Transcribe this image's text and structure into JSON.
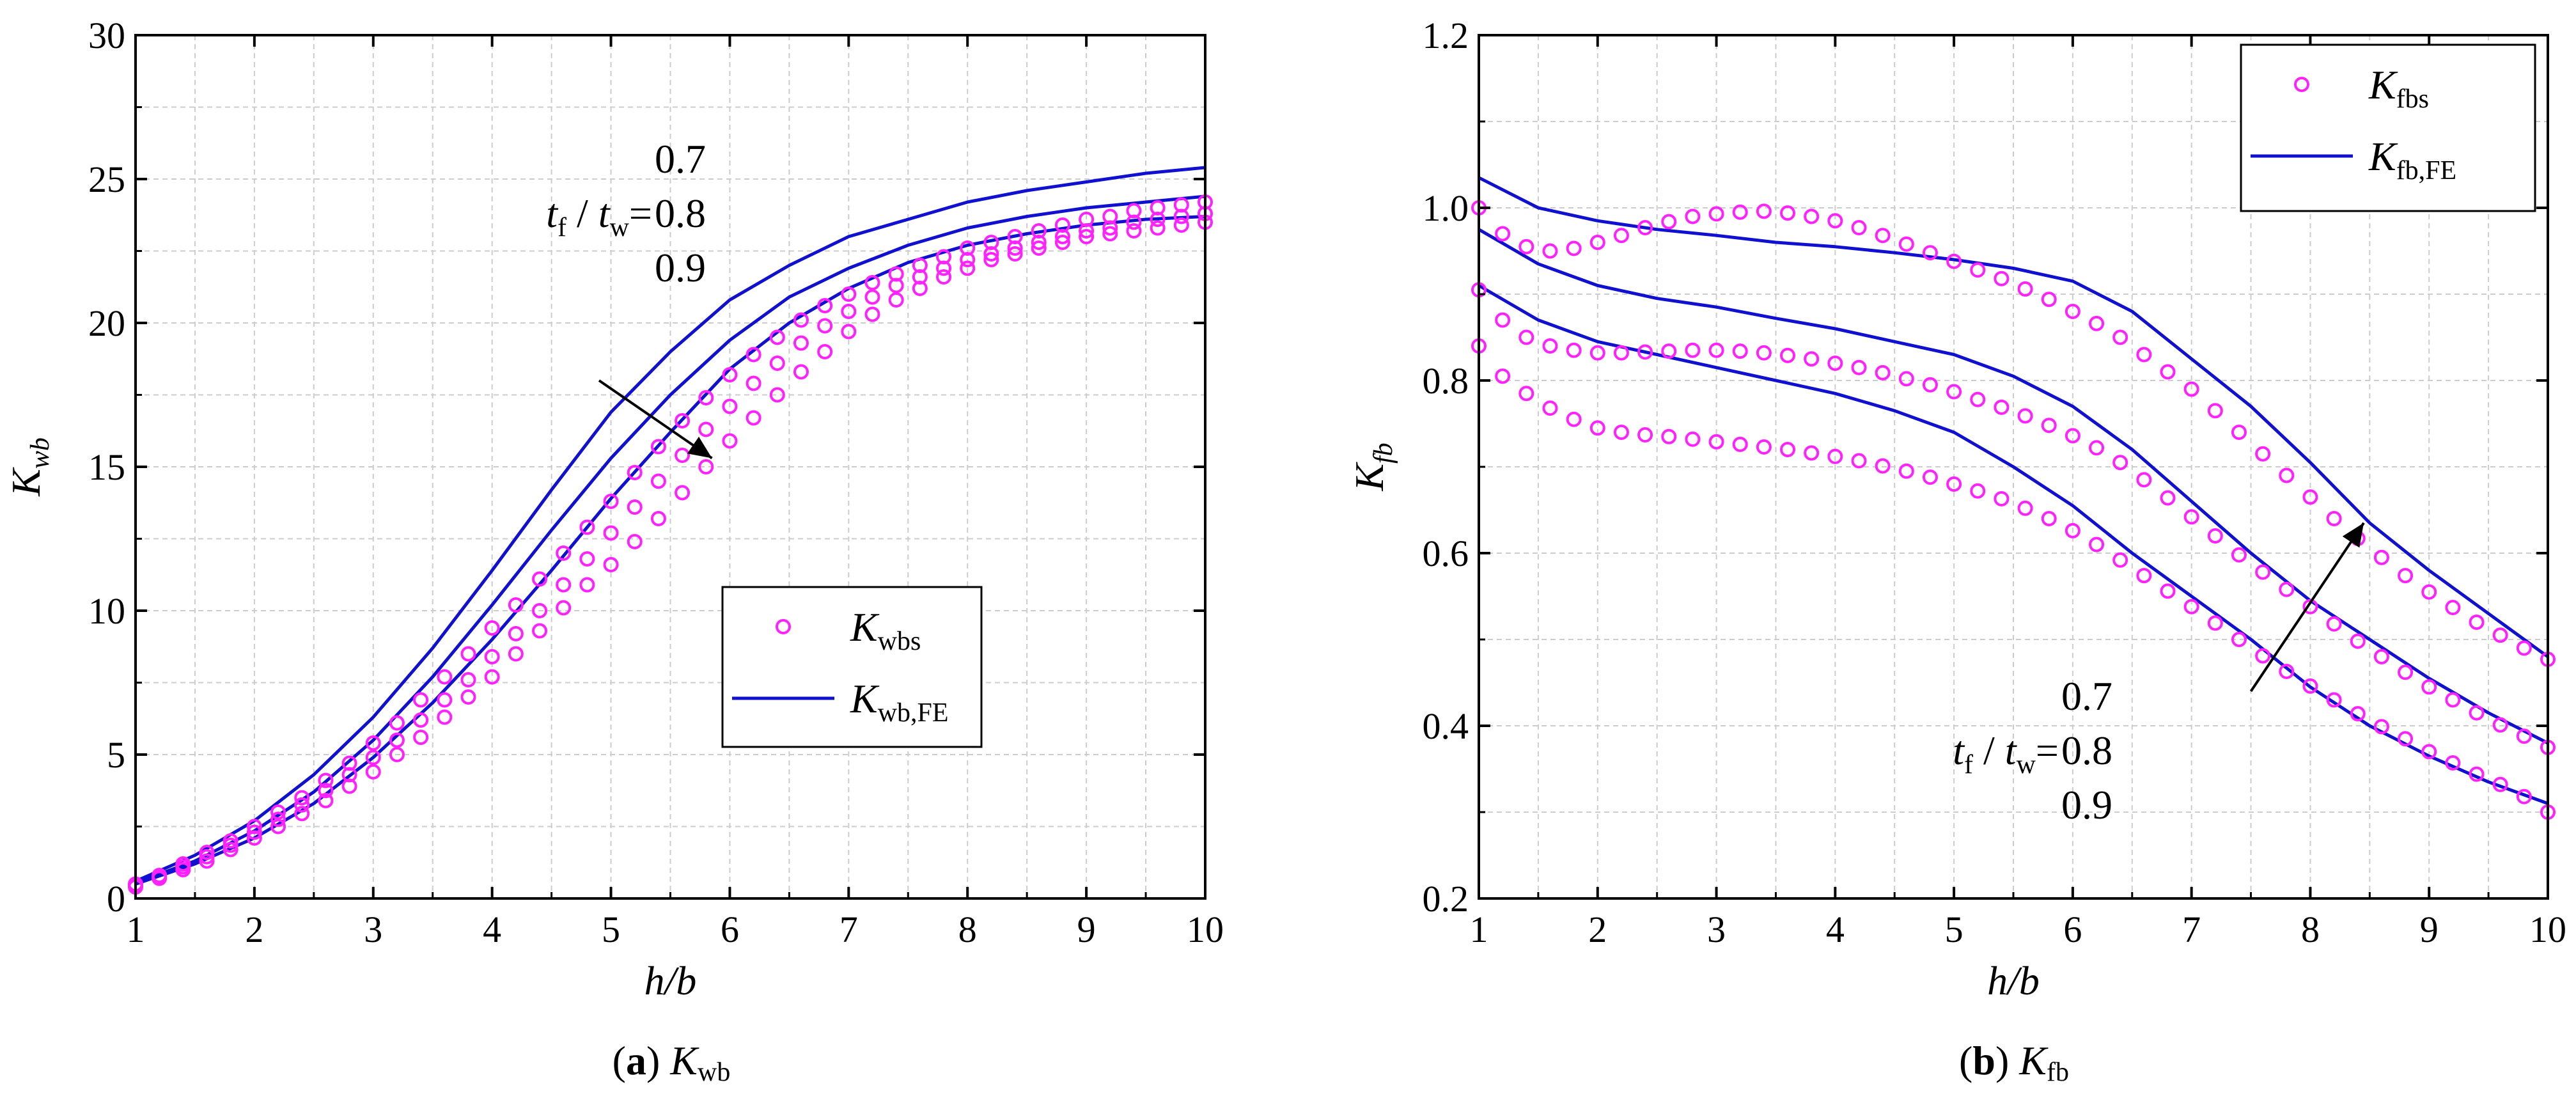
{
  "colors": {
    "fe_line": "#1010d0",
    "marker": "#ff22ff",
    "grid": "#cccccc",
    "axis": "#000000"
  },
  "chart_data": [
    {
      "id": "a",
      "type": "line",
      "title": "",
      "caption": {
        "letter": "a",
        "symbol": "K",
        "subscript": "wb"
      },
      "xlabel": "h/b",
      "ylabel": {
        "symbol": "K",
        "subscript": "wb"
      },
      "xlim": [
        1,
        10
      ],
      "ylim": [
        0,
        30
      ],
      "xticks": [
        1,
        2,
        3,
        4,
        5,
        6,
        7,
        8,
        9,
        10
      ],
      "yticks": [
        0,
        5,
        10,
        15,
        20,
        25,
        30
      ],
      "legend": {
        "position": "center-right",
        "entries": [
          {
            "kind": "marker",
            "symbol": "K",
            "subscript": "wbs"
          },
          {
            "kind": "line",
            "symbol": "K",
            "subscript": "wb,FE"
          }
        ]
      },
      "annotation": {
        "label_symbol": "t",
        "label_sub1": "f",
        "label_sep": " / ",
        "label_sub2": "w",
        "label_eq": "=",
        "values": [
          "0.7",
          "0.8",
          "0.9"
        ],
        "arrow_from": [
          4.9,
          18.0
        ],
        "arrow_to": [
          5.85,
          15.3
        ]
      },
      "series": [
        {
          "name": "Kwb,FE tf/tw=0.7",
          "kind": "line",
          "x": [
            1,
            1.5,
            2,
            2.5,
            3,
            3.5,
            4,
            4.5,
            5,
            5.5,
            6,
            6.5,
            7,
            7.5,
            8,
            8.5,
            9,
            9.5,
            10
          ],
          "y": [
            0.6,
            1.5,
            2.7,
            4.3,
            6.3,
            8.7,
            11.4,
            14.2,
            16.9,
            19.0,
            20.8,
            22.0,
            23.0,
            23.6,
            24.2,
            24.6,
            24.9,
            25.2,
            25.4
          ]
        },
        {
          "name": "Kwb,FE tf/tw=0.8",
          "kind": "line",
          "x": [
            1,
            1.5,
            2,
            2.5,
            3,
            3.5,
            4,
            4.5,
            5,
            5.5,
            6,
            6.5,
            7,
            7.5,
            8,
            8.5,
            9,
            9.5,
            10
          ],
          "y": [
            0.55,
            1.3,
            2.35,
            3.7,
            5.5,
            7.7,
            10.2,
            12.8,
            15.3,
            17.5,
            19.4,
            20.9,
            21.9,
            22.7,
            23.3,
            23.7,
            24.0,
            24.2,
            24.4
          ]
        },
        {
          "name": "Kwb,FE tf/tw=0.9",
          "kind": "line",
          "x": [
            1,
            1.5,
            2,
            2.5,
            3,
            3.5,
            4,
            4.5,
            5,
            5.5,
            6,
            6.5,
            7,
            7.5,
            8,
            8.5,
            9,
            9.5,
            10
          ],
          "y": [
            0.5,
            1.2,
            2.1,
            3.3,
            4.9,
            6.8,
            9.0,
            11.4,
            13.9,
            16.2,
            18.4,
            20.0,
            21.2,
            22.1,
            22.7,
            23.1,
            23.4,
            23.6,
            23.7
          ]
        },
        {
          "name": "Kwbs tf/tw=0.7",
          "kind": "marker",
          "x": [
            1.0,
            1.2,
            1.4,
            1.6,
            1.8,
            2.0,
            2.2,
            2.4,
            2.6,
            2.8,
            3.0,
            3.2,
            3.4,
            3.6,
            3.8,
            4.0,
            4.2,
            4.4,
            4.6,
            4.8,
            5.0,
            5.2,
            5.4,
            5.6,
            5.8,
            6.0,
            6.2,
            6.4,
            6.6,
            6.8,
            7.0,
            7.2,
            7.4,
            7.6,
            7.8,
            8.0,
            8.2,
            8.4,
            8.6,
            8.8,
            9.0,
            9.2,
            9.4,
            9.6,
            9.8,
            10.0
          ],
          "y": [
            0.5,
            0.8,
            1.2,
            1.6,
            2.0,
            2.5,
            3.0,
            3.5,
            4.1,
            4.7,
            5.4,
            6.1,
            6.9,
            7.7,
            8.5,
            9.4,
            10.2,
            11.1,
            12.0,
            12.9,
            13.8,
            14.8,
            15.7,
            16.6,
            17.4,
            18.2,
            18.9,
            19.5,
            20.1,
            20.6,
            21.0,
            21.4,
            21.7,
            22.0,
            22.3,
            22.6,
            22.8,
            23.0,
            23.2,
            23.4,
            23.6,
            23.7,
            23.9,
            24.0,
            24.1,
            24.2
          ]
        },
        {
          "name": "Kwbs tf/tw=0.8",
          "kind": "marker",
          "x": [
            1.0,
            1.2,
            1.4,
            1.6,
            1.8,
            2.0,
            2.2,
            2.4,
            2.6,
            2.8,
            3.0,
            3.2,
            3.4,
            3.6,
            3.8,
            4.0,
            4.2,
            4.4,
            4.6,
            4.8,
            5.0,
            5.2,
            5.4,
            5.6,
            5.8,
            6.0,
            6.2,
            6.4,
            6.6,
            6.8,
            7.0,
            7.2,
            7.4,
            7.6,
            7.8,
            8.0,
            8.2,
            8.4,
            8.6,
            8.8,
            9.0,
            9.2,
            9.4,
            9.6,
            9.8,
            10.0
          ],
          "y": [
            0.45,
            0.75,
            1.1,
            1.45,
            1.85,
            2.3,
            2.75,
            3.25,
            3.75,
            4.3,
            4.9,
            5.5,
            6.2,
            6.9,
            7.6,
            8.4,
            9.2,
            10.0,
            10.9,
            11.8,
            12.7,
            13.6,
            14.5,
            15.4,
            16.3,
            17.1,
            17.9,
            18.6,
            19.3,
            19.9,
            20.4,
            20.9,
            21.3,
            21.6,
            21.9,
            22.2,
            22.4,
            22.6,
            22.8,
            23.0,
            23.2,
            23.3,
            23.5,
            23.6,
            23.7,
            23.8
          ]
        },
        {
          "name": "Kwbs tf/tw=0.9",
          "kind": "marker",
          "x": [
            1.0,
            1.2,
            1.4,
            1.6,
            1.8,
            2.0,
            2.2,
            2.4,
            2.6,
            2.8,
            3.0,
            3.2,
            3.4,
            3.6,
            3.8,
            4.0,
            4.2,
            4.4,
            4.6,
            4.8,
            5.0,
            5.2,
            5.4,
            5.6,
            5.8,
            6.0,
            6.2,
            6.4,
            6.6,
            6.8,
            7.0,
            7.2,
            7.4,
            7.6,
            7.8,
            8.0,
            8.2,
            8.4,
            8.6,
            8.8,
            9.0,
            9.2,
            9.4,
            9.6,
            9.8,
            10.0
          ],
          "y": [
            0.4,
            0.7,
            1.0,
            1.3,
            1.7,
            2.1,
            2.5,
            2.95,
            3.4,
            3.9,
            4.4,
            5.0,
            5.6,
            6.3,
            7.0,
            7.7,
            8.5,
            9.3,
            10.1,
            10.9,
            11.6,
            12.4,
            13.2,
            14.1,
            15.0,
            15.9,
            16.7,
            17.5,
            18.3,
            19.0,
            19.7,
            20.3,
            20.8,
            21.2,
            21.6,
            21.9,
            22.2,
            22.4,
            22.6,
            22.8,
            23.0,
            23.1,
            23.2,
            23.3,
            23.4,
            23.5
          ]
        }
      ]
    },
    {
      "id": "b",
      "type": "line",
      "title": "",
      "caption": {
        "letter": "b",
        "symbol": "K",
        "subscript": "fb"
      },
      "xlabel": "h/b",
      "ylabel": {
        "symbol": "K",
        "subscript": "fb"
      },
      "xlim": [
        1,
        10
      ],
      "ylim": [
        0.2,
        1.2
      ],
      "xticks": [
        1,
        2,
        3,
        4,
        5,
        6,
        7,
        8,
        9,
        10
      ],
      "yticks": [
        0.2,
        0.4,
        0.6,
        0.8,
        1.0,
        1.2
      ],
      "legend": {
        "position": "top-right",
        "entries": [
          {
            "kind": "marker",
            "symbol": "K",
            "subscript": "fbs"
          },
          {
            "kind": "line",
            "symbol": "K",
            "subscript": "fb,FE"
          }
        ]
      },
      "annotation": {
        "label_symbol": "t",
        "label_sub1": "f",
        "label_sep": " / ",
        "label_sub2": "w",
        "label_eq": "=",
        "values": [
          "0.7",
          "0.8",
          "0.9"
        ],
        "arrow_from": [
          7.5,
          0.44
        ],
        "arrow_to": [
          8.45,
          0.635
        ]
      },
      "series": [
        {
          "name": "Kfb,FE tf/tw=0.7",
          "kind": "line",
          "x": [
            1,
            1.5,
            2,
            2.5,
            3,
            3.5,
            4,
            4.5,
            5,
            5.5,
            6,
            6.5,
            7,
            7.5,
            8,
            8.5,
            9,
            9.5,
            10
          ],
          "y": [
            1.035,
            1.0,
            0.985,
            0.975,
            0.968,
            0.96,
            0.955,
            0.948,
            0.94,
            0.93,
            0.915,
            0.88,
            0.825,
            0.77,
            0.705,
            0.635,
            0.58,
            0.53,
            0.48
          ]
        },
        {
          "name": "Kfb,FE tf/tw=0.8",
          "kind": "line",
          "x": [
            1,
            1.5,
            2,
            2.5,
            3,
            3.5,
            4,
            4.5,
            5,
            5.5,
            6,
            6.5,
            7,
            7.5,
            8,
            8.5,
            9,
            9.5,
            10
          ],
          "y": [
            0.975,
            0.935,
            0.91,
            0.895,
            0.885,
            0.872,
            0.86,
            0.845,
            0.83,
            0.805,
            0.77,
            0.72,
            0.66,
            0.6,
            0.545,
            0.5,
            0.455,
            0.415,
            0.38
          ]
        },
        {
          "name": "Kfb,FE tf/tw=0.9",
          "kind": "line",
          "x": [
            1,
            1.5,
            2,
            2.5,
            3,
            3.5,
            4,
            4.5,
            5,
            5.5,
            6,
            6.5,
            7,
            7.5,
            8,
            8.5,
            9,
            9.5,
            10
          ],
          "y": [
            0.91,
            0.87,
            0.845,
            0.83,
            0.815,
            0.8,
            0.785,
            0.765,
            0.74,
            0.7,
            0.655,
            0.6,
            0.55,
            0.5,
            0.445,
            0.4,
            0.365,
            0.335,
            0.31
          ]
        },
        {
          "name": "Kfbs tf/tw=0.7",
          "kind": "marker",
          "x": [
            1.0,
            1.2,
            1.4,
            1.6,
            1.8,
            2.0,
            2.2,
            2.4,
            2.6,
            2.8,
            3.0,
            3.2,
            3.4,
            3.6,
            3.8,
            4.0,
            4.2,
            4.4,
            4.6,
            4.8,
            5.0,
            5.2,
            5.4,
            5.6,
            5.8,
            6.0,
            6.2,
            6.4,
            6.6,
            6.8,
            7.0,
            7.2,
            7.4,
            7.6,
            7.8,
            8.0,
            8.2,
            8.4,
            8.6,
            8.8,
            9.0,
            9.2,
            9.4,
            9.6,
            9.8,
            10.0
          ],
          "y": [
            1.0,
            0.97,
            0.955,
            0.95,
            0.953,
            0.96,
            0.968,
            0.977,
            0.984,
            0.99,
            0.993,
            0.995,
            0.996,
            0.994,
            0.99,
            0.985,
            0.977,
            0.968,
            0.958,
            0.948,
            0.938,
            0.928,
            0.918,
            0.906,
            0.894,
            0.88,
            0.866,
            0.85,
            0.83,
            0.81,
            0.79,
            0.765,
            0.74,
            0.715,
            0.69,
            0.665,
            0.64,
            0.617,
            0.595,
            0.574,
            0.555,
            0.537,
            0.52,
            0.505,
            0.49,
            0.477
          ]
        },
        {
          "name": "Kfbs tf/tw=0.8",
          "kind": "marker",
          "x": [
            1.0,
            1.2,
            1.4,
            1.6,
            1.8,
            2.0,
            2.2,
            2.4,
            2.6,
            2.8,
            3.0,
            3.2,
            3.4,
            3.6,
            3.8,
            4.0,
            4.2,
            4.4,
            4.6,
            4.8,
            5.0,
            5.2,
            5.4,
            5.6,
            5.8,
            6.0,
            6.2,
            6.4,
            6.6,
            6.8,
            7.0,
            7.2,
            7.4,
            7.6,
            7.8,
            8.0,
            8.2,
            8.4,
            8.6,
            8.8,
            9.0,
            9.2,
            9.4,
            9.6,
            9.8,
            10.0
          ],
          "y": [
            0.905,
            0.87,
            0.85,
            0.84,
            0.835,
            0.832,
            0.832,
            0.833,
            0.834,
            0.835,
            0.835,
            0.834,
            0.832,
            0.829,
            0.825,
            0.82,
            0.815,
            0.809,
            0.802,
            0.795,
            0.787,
            0.778,
            0.769,
            0.759,
            0.748,
            0.736,
            0.722,
            0.705,
            0.685,
            0.664,
            0.642,
            0.62,
            0.598,
            0.578,
            0.558,
            0.538,
            0.518,
            0.498,
            0.48,
            0.462,
            0.445,
            0.43,
            0.415,
            0.401,
            0.388,
            0.375
          ]
        },
        {
          "name": "Kfbs tf/tw=0.9",
          "kind": "marker",
          "x": [
            1.0,
            1.2,
            1.4,
            1.6,
            1.8,
            2.0,
            2.2,
            2.4,
            2.6,
            2.8,
            3.0,
            3.2,
            3.4,
            3.6,
            3.8,
            4.0,
            4.2,
            4.4,
            4.6,
            4.8,
            5.0,
            5.2,
            5.4,
            5.6,
            5.8,
            6.0,
            6.2,
            6.4,
            6.6,
            6.8,
            7.0,
            7.2,
            7.4,
            7.6,
            7.8,
            8.0,
            8.2,
            8.4,
            8.6,
            8.8,
            9.0,
            9.2,
            9.4,
            9.6,
            9.8,
            10.0
          ],
          "y": [
            0.84,
            0.805,
            0.785,
            0.768,
            0.755,
            0.745,
            0.74,
            0.737,
            0.735,
            0.732,
            0.729,
            0.726,
            0.723,
            0.72,
            0.716,
            0.712,
            0.707,
            0.701,
            0.695,
            0.688,
            0.68,
            0.672,
            0.663,
            0.652,
            0.64,
            0.626,
            0.61,
            0.592,
            0.574,
            0.556,
            0.538,
            0.519,
            0.5,
            0.481,
            0.463,
            0.446,
            0.43,
            0.414,
            0.399,
            0.385,
            0.37,
            0.357,
            0.344,
            0.332,
            0.318,
            0.3
          ]
        }
      ]
    }
  ]
}
